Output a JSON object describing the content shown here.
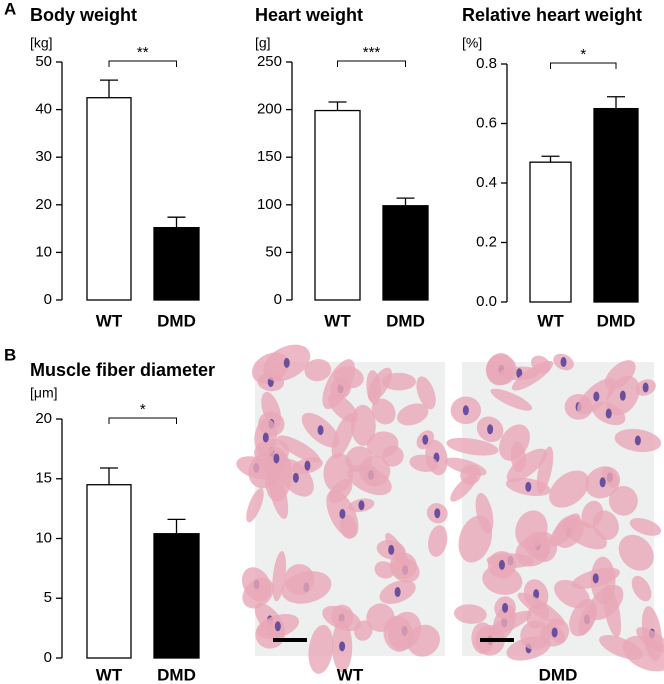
{
  "panels": [
    "A",
    "B"
  ],
  "chart_data": [
    {
      "type": "bar",
      "title": "Body weight",
      "y_label": "[kg]",
      "categories": [
        "WT",
        "DMD"
      ],
      "values": [
        42.5,
        15.2
      ],
      "errors": [
        3.7,
        2.2
      ],
      "colors": [
        "#ffffff",
        "#000000"
      ],
      "ylim": [
        0,
        50
      ],
      "yticks": [
        0,
        10,
        20,
        30,
        40,
        50
      ],
      "annotation": "**"
    },
    {
      "type": "bar",
      "title": "Heart weight",
      "y_label": "[g]",
      "categories": [
        "WT",
        "DMD"
      ],
      "values": [
        199,
        99
      ],
      "errors": [
        9,
        8
      ],
      "colors": [
        "#ffffff",
        "#000000"
      ],
      "ylim": [
        0,
        250
      ],
      "yticks": [
        0,
        50,
        100,
        150,
        200,
        250
      ],
      "annotation": "***"
    },
    {
      "type": "bar",
      "title": "Relative heart weight",
      "y_label": "[%]",
      "categories": [
        "WT",
        "DMD"
      ],
      "values": [
        0.47,
        0.65
      ],
      "errors": [
        0.02,
        0.04
      ],
      "colors": [
        "#ffffff",
        "#000000"
      ],
      "ylim": [
        0,
        0.8
      ],
      "yticks": [
        {
          "value": 0,
          "label": "0.0"
        },
        0.2,
        0.4,
        0.6,
        0.8
      ],
      "annotation": "*"
    },
    {
      "type": "bar",
      "title": "Muscle fiber diameter",
      "y_label": "[μm]",
      "categories": [
        "WT",
        "DMD"
      ],
      "values": [
        14.5,
        10.4
      ],
      "errors": [
        1.4,
        1.2
      ],
      "colors": [
        "#ffffff",
        "#000000"
      ],
      "ylim": [
        0,
        20
      ],
      "yticks": [
        0,
        5,
        10,
        15,
        20
      ],
      "annotation": "*"
    }
  ],
  "images": [
    {
      "label": "WT"
    },
    {
      "label": "DMD"
    }
  ]
}
